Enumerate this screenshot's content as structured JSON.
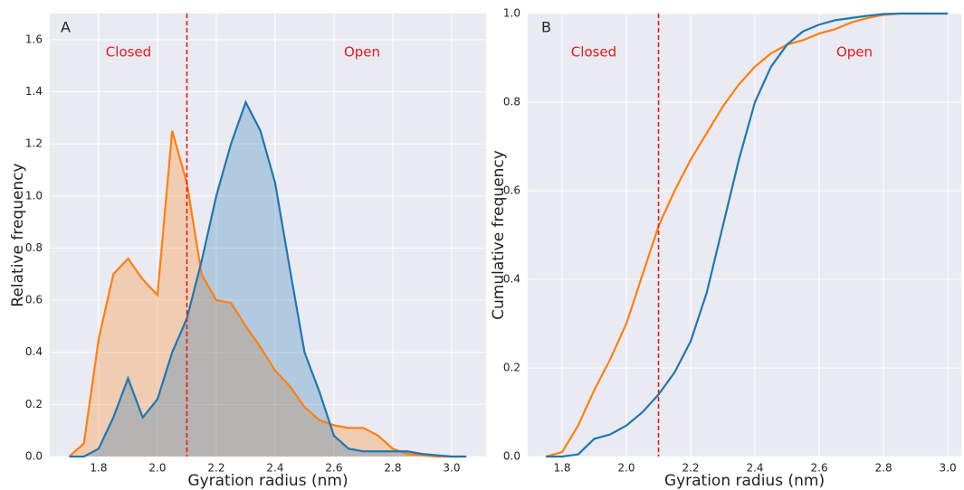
{
  "chart_data": [
    {
      "type": "area",
      "panel_label": "A",
      "annotations": [
        "Closed",
        "Open"
      ],
      "xlabel": "Gyration radius (nm)",
      "ylabel": "Relative frequency",
      "x": [
        1.7,
        1.75,
        1.8,
        1.85,
        1.9,
        1.95,
        2.0,
        2.05,
        2.1,
        2.15,
        2.2,
        2.25,
        2.3,
        2.35,
        2.4,
        2.45,
        2.5,
        2.55,
        2.6,
        2.65,
        2.7,
        2.75,
        2.8,
        2.85,
        2.9,
        2.95,
        3.0,
        3.05
      ],
      "series": [
        {
          "color": "#ff7f0e",
          "values": [
            0,
            0.05,
            0.45,
            0.7,
            0.76,
            0.68,
            0.62,
            1.25,
            1.05,
            0.7,
            0.6,
            0.59,
            0.5,
            0.42,
            0.33,
            0.27,
            0.19,
            0.14,
            0.12,
            0.11,
            0.11,
            0.08,
            0.03,
            0.01,
            0.005,
            0,
            0,
            0
          ]
        },
        {
          "color": "#1f77b4",
          "values": [
            0,
            0,
            0.03,
            0.15,
            0.3,
            0.15,
            0.22,
            0.4,
            0.53,
            0.75,
            1.0,
            1.2,
            1.36,
            1.25,
            1.05,
            0.72,
            0.4,
            0.25,
            0.08,
            0.03,
            0.02,
            0.02,
            0.02,
            0.02,
            0.01,
            0.005,
            0,
            0
          ]
        }
      ],
      "xlim": [
        1.634,
        3.117
      ],
      "ylim": [
        0,
        1.7
      ],
      "xticks": [
        1.8,
        {
          "value": 2.0,
          "label": "2.0"
        },
        2.2,
        2.4,
        2.6,
        2.8,
        {
          "value": 3.0,
          "label": "3.0"
        }
      ],
      "yticks": [
        {
          "value": 0,
          "label": "0.0"
        },
        0.2,
        0.4,
        0.6,
        0.8,
        {
          "value": 1.0,
          "label": "1.0"
        },
        1.2,
        1.4,
        1.6
      ],
      "grid": true,
      "vline": 2.1,
      "vline_color": "#e41a1c"
    },
    {
      "type": "line",
      "panel_label": "B",
      "annotations": [
        "Closed",
        "Open"
      ],
      "xlabel": "Gyration radius (nm)",
      "ylabel": "Cumulative frequency",
      "x": [
        1.75,
        1.8,
        1.85,
        1.9,
        1.95,
        2.0,
        2.05,
        2.1,
        2.15,
        2.2,
        2.25,
        2.3,
        2.35,
        2.4,
        2.45,
        2.5,
        2.55,
        2.6,
        2.65,
        2.7,
        2.75,
        2.8,
        2.85,
        3.0
      ],
      "series": [
        {
          "color": "#ff7f0e",
          "values": [
            0,
            0.01,
            0.07,
            0.15,
            0.22,
            0.3,
            0.41,
            0.52,
            0.6,
            0.67,
            0.73,
            0.79,
            0.84,
            0.88,
            0.91,
            0.93,
            0.94,
            0.955,
            0.965,
            0.98,
            0.99,
            0.997,
            1.0,
            1.0
          ]
        },
        {
          "color": "#1f77b4",
          "values": [
            0,
            0,
            0.005,
            0.04,
            0.05,
            0.07,
            0.1,
            0.14,
            0.19,
            0.26,
            0.37,
            0.52,
            0.67,
            0.8,
            0.88,
            0.93,
            0.96,
            0.975,
            0.985,
            0.99,
            0.995,
            0.999,
            1.0,
            1.0
          ]
        }
      ],
      "xlim": [
        1.693,
        3.042
      ],
      "ylim": [
        0,
        1.0
      ],
      "xticks": [
        1.8,
        {
          "value": 2.0,
          "label": "2.0"
        },
        2.2,
        2.4,
        2.6,
        2.8,
        {
          "value": 3.0,
          "label": "3.0"
        }
      ],
      "yticks": [
        {
          "value": 0,
          "label": "0.0"
        },
        0.2,
        0.4,
        0.6,
        0.8,
        {
          "value": 1.0,
          "label": "1.0"
        }
      ],
      "grid": true,
      "vline": 2.1,
      "vline_color": "#e41a1c"
    }
  ]
}
